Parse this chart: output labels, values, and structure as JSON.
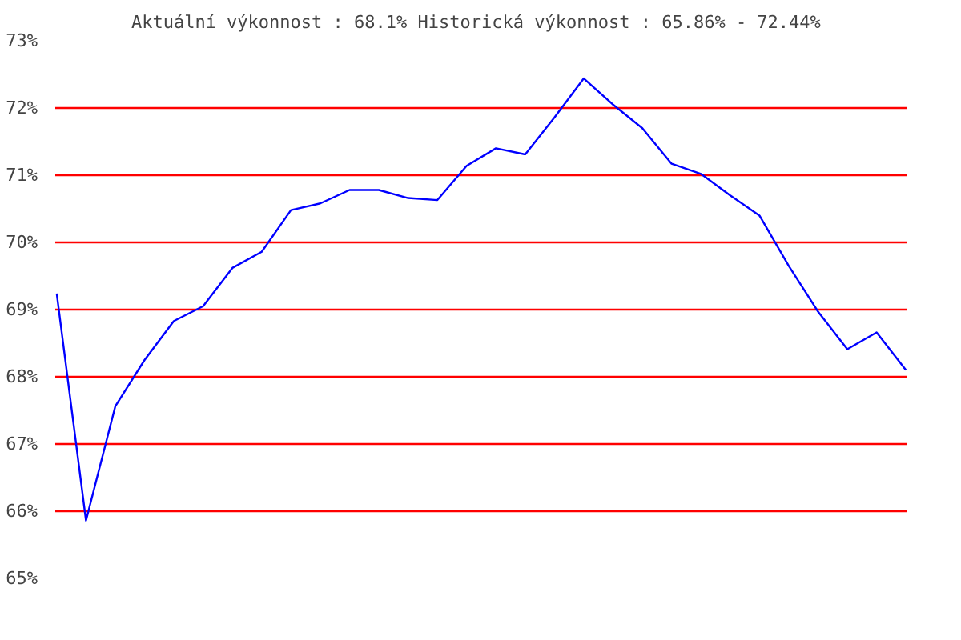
{
  "chart_data": {
    "type": "line",
    "title": "Aktuální výkonnost : 68.1%  Historická výkonnost : 65.86% - 72.44%",
    "categories": [
      null,
      null,
      null,
      null,
      null,
      null,
      null,
      null,
      null,
      null,
      null,
      null,
      null,
      null,
      null,
      null,
      null,
      null,
      null,
      null,
      null,
      null,
      null,
      null,
      null,
      null,
      null,
      null,
      null,
      null
    ],
    "series": [
      {
        "color": "#0000ff",
        "values": [
          69.24,
          65.86,
          67.56,
          68.25,
          68.83,
          69.05,
          69.62,
          69.86,
          70.48,
          70.58,
          70.78,
          70.78,
          70.66,
          70.63,
          71.14,
          71.4,
          71.31,
          71.86,
          72.44,
          72.05,
          71.7,
          71.17,
          71.02,
          70.7,
          70.4,
          69.65,
          68.97,
          68.41,
          68.66,
          68.1
        ]
      }
    ],
    "ylim": [
      65,
      73
    ],
    "yticks": [
      {
        "value": 65,
        "label": "65%"
      },
      {
        "value": 66,
        "label": "66%"
      },
      {
        "value": 67,
        "label": "67%"
      },
      {
        "value": 68,
        "label": "68%"
      },
      {
        "value": 69,
        "label": "69%"
      },
      {
        "value": 70,
        "label": "70%"
      },
      {
        "value": 71,
        "label": "71%"
      },
      {
        "value": 72,
        "label": "72%"
      },
      {
        "value": 73,
        "label": "73%"
      }
    ],
    "grid": "y",
    "tick_labels": "y",
    "marker": "none",
    "line_style": "solid"
  }
}
